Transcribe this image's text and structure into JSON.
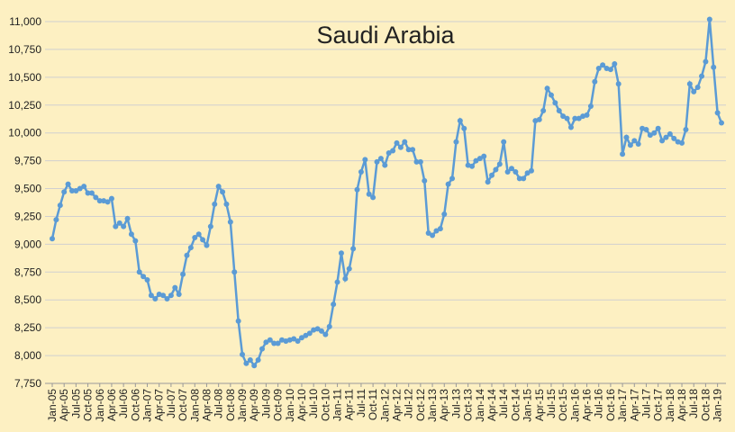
{
  "chart_data": {
    "type": "line",
    "title": "Saudi Arabia",
    "categories": [
      "Jan-05",
      null,
      null,
      "Apr-05",
      null,
      null,
      "Jul-05",
      null,
      null,
      "Oct-05",
      null,
      null,
      "Jan-06",
      null,
      null,
      "Apr-06",
      null,
      null,
      "Jul-06",
      null,
      null,
      "Oct-06",
      null,
      null,
      "Jan-07",
      null,
      null,
      "Apr-07",
      null,
      null,
      "Jul-07",
      null,
      null,
      "Oct-07",
      null,
      null,
      "Jan-08",
      null,
      null,
      "Apr-08",
      null,
      null,
      "Jul-08",
      null,
      null,
      "Oct-08",
      null,
      null,
      "Jan-09",
      null,
      null,
      "Apr-09",
      null,
      null,
      "Jul-09",
      null,
      null,
      "Oct-09",
      null,
      null,
      "Jan-10",
      null,
      null,
      "Apr-10",
      null,
      null,
      "Jul-10",
      null,
      null,
      "Oct-10",
      null,
      null,
      "Jan-11",
      null,
      null,
      "Apr-11",
      null,
      null,
      "Jul-11",
      null,
      null,
      "Oct-11",
      null,
      null,
      "Jan-12",
      null,
      null,
      "Apr-12",
      null,
      null,
      "Jul-12",
      null,
      null,
      "Oct-12",
      null,
      null,
      "Jan-13",
      null,
      null,
      "Apr-13",
      null,
      null,
      "Jul-13",
      null,
      null,
      "Oct-13",
      null,
      null,
      "Jan-14",
      null,
      null,
      "Apr-14",
      null,
      null,
      "Jul-14",
      null,
      null,
      "Oct-14",
      null,
      null,
      "Jan-15",
      null,
      null,
      "Apr-15",
      null,
      null,
      "Jul-15",
      null,
      null,
      "Oct-15",
      null,
      null,
      "Jan-16",
      null,
      null,
      "Apr-16",
      null,
      null,
      "Jul-16",
      null,
      null,
      "Oct-16",
      null,
      null,
      "Jan-17",
      null,
      null,
      "Apr-17",
      null,
      null,
      "Jul-17",
      null,
      null,
      "Oct-17",
      null,
      null,
      "Jan-18",
      null,
      null,
      "Apr-18",
      null,
      null,
      "Jul-18",
      null,
      null,
      "Oct-18",
      null,
      null,
      "Jan-19",
      null
    ],
    "values": [
      9050,
      9220,
      9350,
      9470,
      9540,
      9480,
      9480,
      9500,
      9520,
      9460,
      9460,
      9420,
      9390,
      9390,
      9380,
      9410,
      9160,
      9190,
      9160,
      9230,
      9090,
      9030,
      8750,
      8710,
      8680,
      8540,
      8510,
      8550,
      8540,
      8510,
      8540,
      8610,
      8550,
      8730,
      8900,
      8970,
      9060,
      9090,
      9040,
      8990,
      9160,
      9360,
      9520,
      9470,
      9360,
      9200,
      8750,
      8310,
      8010,
      7930,
      7960,
      7910,
      7960,
      8060,
      8120,
      8140,
      8110,
      8110,
      8140,
      8130,
      8140,
      8150,
      8130,
      8160,
      8180,
      8200,
      8230,
      8240,
      8220,
      8190,
      8260,
      8460,
      8660,
      8920,
      8690,
      8780,
      8960,
      9490,
      9650,
      9760,
      9450,
      9420,
      9740,
      9770,
      9710,
      9820,
      9840,
      9910,
      9870,
      9920,
      9850,
      9850,
      9740,
      9740,
      9570,
      9100,
      9080,
      9120,
      9140,
      9270,
      9540,
      9590,
      9920,
      10110,
      10040,
      9710,
      9700,
      9750,
      9770,
      9790,
      9560,
      9620,
      9670,
      9720,
      9920,
      9650,
      9680,
      9650,
      9590,
      9590,
      9640,
      9660,
      10110,
      10120,
      10200,
      10400,
      10340,
      10270,
      10200,
      10150,
      10130,
      10050,
      10130,
      10130,
      10150,
      10160,
      10240,
      10460,
      10580,
      10610,
      10580,
      10570,
      10620,
      10440,
      9810,
      9960,
      9890,
      9930,
      9900,
      10040,
      10030,
      9980,
      10000,
      10040,
      9930,
      9960,
      9990,
      9950,
      9920,
      9910,
      10030,
      10440,
      10370,
      10410,
      10510,
      10640,
      11020,
      10590,
      10180,
      10090
    ],
    "color": "#5b9bd5",
    "ylim": [
      7750,
      11000
    ],
    "yticks": [
      {
        "value": 7750,
        "label": "7,750"
      },
      {
        "value": 8000,
        "label": "8,000"
      },
      {
        "value": 8250,
        "label": "8,250"
      },
      {
        "value": 8500,
        "label": "8,500"
      },
      {
        "value": 8750,
        "label": "8,750"
      },
      {
        "value": 9000,
        "label": "9,000"
      },
      {
        "value": 9250,
        "label": "9,250"
      },
      {
        "value": 9500,
        "label": "9,500"
      },
      {
        "value": 9750,
        "label": "9,750"
      },
      {
        "value": 10000,
        "label": "10,000"
      },
      {
        "value": 10250,
        "label": "10,250"
      },
      {
        "value": 10500,
        "label": "10,500"
      },
      {
        "value": 10750,
        "label": "10,750"
      },
      {
        "value": 11000,
        "label": "11,000"
      }
    ],
    "grid": true
  }
}
